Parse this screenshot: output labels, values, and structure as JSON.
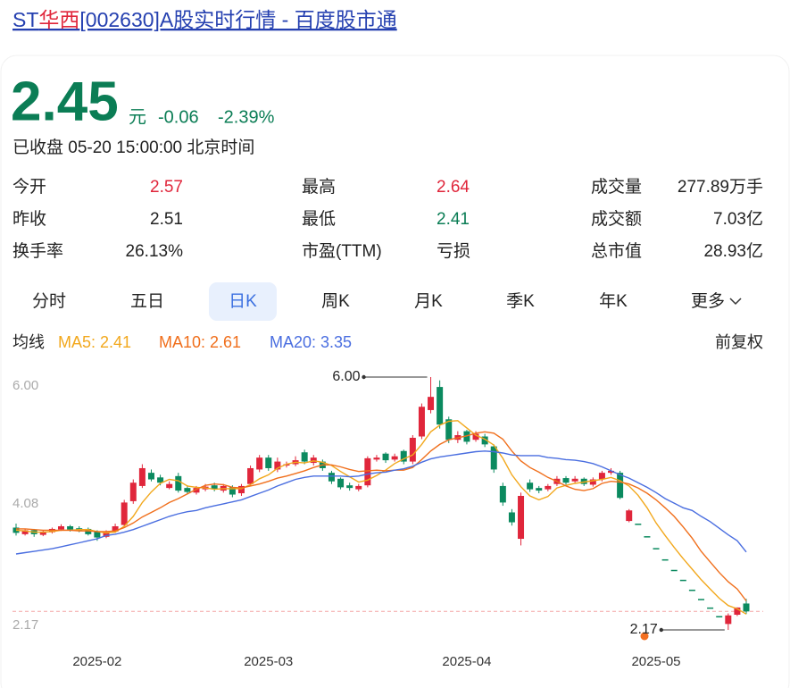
{
  "title": {
    "prefix": "ST",
    "highlight": "华西",
    "suffix": "[002630]A股实时行情 - 百度股市通"
  },
  "quote": {
    "price": "2.45",
    "unit": "元",
    "change": "-0.06",
    "change_pct": "-2.39%",
    "status": "已收盘 05-20 15:00:00 北京时间",
    "color": "#0b7d55"
  },
  "stats": {
    "rows": [
      [
        {
          "label": "今开",
          "value": "2.57",
          "color": "#e0263b"
        },
        {
          "label": "最高",
          "value": "2.64",
          "color": "#e0263b"
        },
        {
          "label": "成交量",
          "value": "277.89万手",
          "color": "#222222"
        }
      ],
      [
        {
          "label": "昨收",
          "value": "2.51",
          "color": "#222222"
        },
        {
          "label": "最低",
          "value": "2.41",
          "color": "#0b7d55"
        },
        {
          "label": "成交额",
          "value": "7.03亿",
          "color": "#222222"
        }
      ],
      [
        {
          "label": "换手率",
          "value": "26.13%",
          "color": "#222222"
        },
        {
          "label": "市盈(TTM)",
          "value": "亏损",
          "color": "#222222"
        },
        {
          "label": "总市值",
          "value": "28.93亿",
          "color": "#222222"
        }
      ]
    ]
  },
  "tabs": [
    {
      "label": "分时",
      "active": false
    },
    {
      "label": "五日",
      "active": false
    },
    {
      "label": "日K",
      "active": true
    },
    {
      "label": "周K",
      "active": false
    },
    {
      "label": "月K",
      "active": false
    },
    {
      "label": "季K",
      "active": false
    },
    {
      "label": "年K",
      "active": false
    },
    {
      "label": "更多",
      "active": false
    }
  ],
  "ma_header": {
    "label": "均线",
    "adjust": "前复权"
  },
  "chart_data": {
    "type": "candlestick",
    "up_color": "#e0263b",
    "down_color": "#0b8a5f",
    "categories": [
      null,
      null,
      null,
      null,
      null,
      null,
      null,
      null,
      null,
      "2025-02",
      null,
      null,
      null,
      null,
      null,
      null,
      null,
      null,
      null,
      null,
      null,
      null,
      null,
      null,
      null,
      null,
      null,
      null,
      "2025-03",
      null,
      null,
      null,
      null,
      null,
      null,
      null,
      null,
      null,
      null,
      null,
      null,
      null,
      null,
      null,
      null,
      null,
      null,
      null,
      null,
      null,
      "2025-04",
      null,
      null,
      null,
      null,
      null,
      null,
      null,
      null,
      null,
      null,
      null,
      null,
      null,
      null,
      null,
      null,
      null,
      null,
      null,
      null,
      "2025-05",
      null,
      null,
      null,
      null,
      null,
      null,
      null,
      null,
      null,
      null
    ],
    "open": [
      3.72,
      3.62,
      3.68,
      3.61,
      3.65,
      3.69,
      3.74,
      3.71,
      3.7,
      3.66,
      3.58,
      3.66,
      3.76,
      4.12,
      4.35,
      4.55,
      4.48,
      4.32,
      4.5,
      4.32,
      4.25,
      4.3,
      4.36,
      4.28,
      4.33,
      4.24,
      4.38,
      4.6,
      4.78,
      4.6,
      4.66,
      4.68,
      4.86,
      4.7,
      4.72,
      4.55,
      4.46,
      4.36,
      4.3,
      4.36,
      4.75,
      4.84,
      4.75,
      4.88,
      4.72,
      5.1,
      5.5,
      5.85,
      5.36,
      5.05,
      5.18,
      5.05,
      5.1,
      4.95,
      4.35,
      3.95,
      3.55,
      4.4,
      4.32,
      4.3,
      4.38,
      4.47,
      4.42,
      4.46,
      4.37,
      4.45,
      4.55,
      4.55,
      3.82,
      3.78,
      3.59,
      3.41,
      3.24,
      3.08,
      2.93,
      2.78,
      2.64,
      2.51,
      2.38,
      2.26,
      2.4,
      2.57
    ],
    "high": [
      3.78,
      3.7,
      3.7,
      3.68,
      3.72,
      3.77,
      3.76,
      3.74,
      3.72,
      3.68,
      3.68,
      3.78,
      4.14,
      4.45,
      4.68,
      4.6,
      4.52,
      4.42,
      4.55,
      4.36,
      4.35,
      4.38,
      4.4,
      4.38,
      4.36,
      4.38,
      4.66,
      4.82,
      4.82,
      4.78,
      4.72,
      4.8,
      4.9,
      4.82,
      4.75,
      4.58,
      4.48,
      4.4,
      4.38,
      4.8,
      4.82,
      4.86,
      4.84,
      4.9,
      5.12,
      5.6,
      6.0,
      5.95,
      5.4,
      5.18,
      5.2,
      5.18,
      5.14,
      4.98,
      4.4,
      4.0,
      4.25,
      4.45,
      4.35,
      4.38,
      4.5,
      4.5,
      4.5,
      4.48,
      4.48,
      4.58,
      4.62,
      4.58,
      4.0,
      3.78,
      3.59,
      3.41,
      3.24,
      3.08,
      2.93,
      2.78,
      2.64,
      2.51,
      2.38,
      2.42,
      2.51,
      2.64
    ],
    "low": [
      3.6,
      3.6,
      3.58,
      3.59,
      3.63,
      3.67,
      3.66,
      3.65,
      3.6,
      3.52,
      3.56,
      3.64,
      3.74,
      4.08,
      4.32,
      4.42,
      4.36,
      4.3,
      4.25,
      4.22,
      4.22,
      4.27,
      4.27,
      4.25,
      4.18,
      4.2,
      4.35,
      4.56,
      4.58,
      4.56,
      4.63,
      4.65,
      4.68,
      4.66,
      4.58,
      4.38,
      4.3,
      4.28,
      4.27,
      4.33,
      4.72,
      4.7,
      4.72,
      4.68,
      4.68,
      5.06,
      5.45,
      5.22,
      5.0,
      5.0,
      4.98,
      5.02,
      4.94,
      4.55,
      4.05,
      3.75,
      3.45,
      4.26,
      4.24,
      4.27,
      4.35,
      4.37,
      4.39,
      4.35,
      4.34,
      4.42,
      4.52,
      4.15,
      3.8,
      3.78,
      3.59,
      3.41,
      3.24,
      3.08,
      2.93,
      2.78,
      2.64,
      2.51,
      2.38,
      2.17,
      2.38,
      2.41
    ],
    "close": [
      3.64,
      3.68,
      3.62,
      3.66,
      3.7,
      3.74,
      3.69,
      3.68,
      3.62,
      3.57,
      3.66,
      3.74,
      4.1,
      4.4,
      4.62,
      4.45,
      4.4,
      4.38,
      4.28,
      4.26,
      4.32,
      4.34,
      4.3,
      4.35,
      4.22,
      4.35,
      4.62,
      4.78,
      4.62,
      4.72,
      4.68,
      4.74,
      4.72,
      4.78,
      4.62,
      4.42,
      4.33,
      4.32,
      4.35,
      4.77,
      4.78,
      4.74,
      4.8,
      4.72,
      5.08,
      5.55,
      5.7,
      5.28,
      5.05,
      5.12,
      5.02,
      5.14,
      4.98,
      4.6,
      4.1,
      3.8,
      4.2,
      4.3,
      4.28,
      4.35,
      4.46,
      4.4,
      4.46,
      4.38,
      4.45,
      4.55,
      4.58,
      4.17,
      3.98,
      3.78,
      3.59,
      3.41,
      3.24,
      3.08,
      2.93,
      2.78,
      2.64,
      2.51,
      2.38,
      2.39,
      2.51,
      2.45
    ],
    "series": [
      {
        "name": "MA5: 2.41",
        "color": "#f2a81d",
        "values": [
          3.68,
          3.67,
          3.65,
          3.65,
          3.66,
          3.68,
          3.68,
          3.69,
          3.69,
          3.66,
          3.64,
          3.65,
          3.74,
          3.89,
          4.1,
          4.26,
          4.39,
          4.45,
          4.43,
          4.35,
          4.33,
          4.32,
          4.3,
          4.31,
          4.31,
          4.31,
          4.37,
          4.46,
          4.52,
          4.62,
          4.68,
          4.71,
          4.7,
          4.73,
          4.71,
          4.66,
          4.57,
          4.49,
          4.41,
          4.44,
          4.51,
          4.59,
          4.69,
          4.76,
          4.82,
          4.98,
          5.17,
          5.27,
          5.33,
          5.34,
          5.23,
          5.12,
          5.06,
          4.97,
          4.77,
          4.52,
          4.34,
          4.2,
          4.14,
          4.19,
          4.32,
          4.36,
          4.39,
          4.41,
          4.43,
          4.45,
          4.48,
          4.43,
          4.35,
          4.21,
          4.02,
          3.79,
          3.6,
          3.42,
          3.25,
          3.09,
          2.93,
          2.79,
          2.65,
          2.54,
          2.49,
          2.41
        ]
      },
      {
        "name": "MA10: 2.61",
        "color": "#f06f1c",
        "values": [
          3.7,
          3.7,
          3.69,
          3.68,
          3.68,
          3.68,
          3.68,
          3.67,
          3.67,
          3.66,
          3.66,
          3.67,
          3.72,
          3.79,
          3.88,
          3.95,
          4.02,
          4.1,
          4.16,
          4.23,
          4.3,
          4.36,
          4.38,
          4.37,
          4.33,
          4.32,
          4.35,
          4.38,
          4.42,
          4.47,
          4.5,
          4.54,
          4.58,
          4.63,
          4.67,
          4.67,
          4.64,
          4.6,
          4.57,
          4.58,
          4.59,
          4.58,
          4.59,
          4.59,
          4.63,
          4.75,
          4.88,
          4.98,
          5.05,
          5.08,
          5.11,
          5.15,
          5.17,
          5.15,
          5.06,
          4.88,
          4.73,
          4.63,
          4.56,
          4.48,
          4.42,
          4.35,
          4.3,
          4.28,
          4.31,
          4.39,
          4.42,
          4.41,
          4.38,
          4.32,
          4.24,
          4.14,
          4.02,
          3.89,
          3.73,
          3.56,
          3.36,
          3.2,
          3.04,
          2.9,
          2.79,
          2.61
        ]
      },
      {
        "name": "MA20: 3.35",
        "color": "#4a6ee0",
        "values": [
          3.32,
          3.34,
          3.36,
          3.38,
          3.4,
          3.43,
          3.46,
          3.49,
          3.52,
          3.55,
          3.6,
          3.62,
          3.65,
          3.69,
          3.74,
          3.79,
          3.84,
          3.89,
          3.93,
          3.96,
          3.98,
          4.02,
          4.05,
          4.08,
          4.11,
          4.14,
          4.19,
          4.24,
          4.29,
          4.35,
          4.4,
          4.45,
          4.48,
          4.5,
          4.5,
          4.5,
          4.5,
          4.49,
          4.5,
          4.53,
          4.55,
          4.56,
          4.59,
          4.61,
          4.65,
          4.71,
          4.76,
          4.79,
          4.81,
          4.83,
          4.85,
          4.87,
          4.88,
          4.87,
          4.85,
          4.82,
          4.81,
          4.81,
          4.81,
          4.78,
          4.77,
          4.75,
          4.74,
          4.72,
          4.69,
          4.64,
          4.58,
          4.52,
          4.47,
          4.4,
          4.33,
          4.25,
          4.16,
          4.09,
          4.02,
          3.98,
          3.89,
          3.81,
          3.71,
          3.61,
          3.52,
          3.35
        ]
      }
    ],
    "ylim": [
      2.17,
      6.0
    ],
    "yticks": [
      {
        "value": 6.0,
        "label": "6.00"
      },
      {
        "value": 4.08,
        "label": "4.08"
      },
      {
        "value": 2.17,
        "label": "2.17"
      }
    ],
    "reference_line": 2.45,
    "reference_color": "#f3a3a3",
    "annotations": [
      {
        "value": 6.0,
        "label": "6.00"
      },
      {
        "value": 2.17,
        "label": "2.17"
      }
    ],
    "grid": false
  }
}
